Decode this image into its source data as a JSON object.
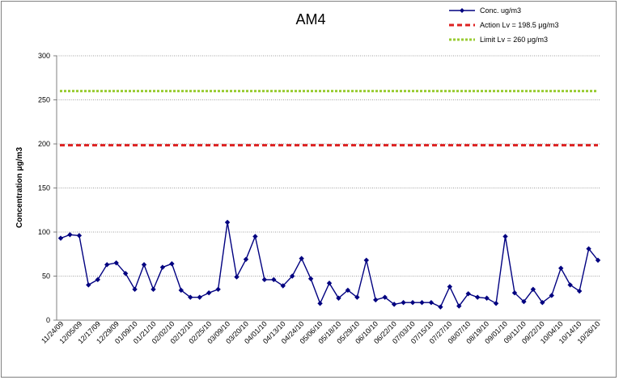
{
  "chart_data": {
    "type": "line",
    "title": "AM4",
    "xlabel": "",
    "ylabel": "Concentration μg/m3",
    "ylim": [
      0,
      300
    ],
    "yticks": [
      0,
      50,
      100,
      150,
      200,
      250,
      300
    ],
    "grid": "horizontal dotted",
    "legend_position": "top-right",
    "xtick_labels": [
      "11/24/09",
      "12/05/09",
      "12/17/09",
      "12/29/09",
      "01/09/10",
      "01/21/10",
      "02/02/10",
      "02/12/10",
      "02/25/10",
      "03/09/10",
      "03/20/10",
      "04/01/10",
      "04/13/10",
      "04/24/10",
      "05/06/10",
      "05/18/10",
      "05/29/10",
      "06/10/10",
      "06/22/10",
      "07/03/10",
      "07/15/10",
      "07/27/10",
      "08/07/10",
      "08/19/10",
      "09/01/10",
      "09/11/10",
      "09/22/10",
      "10/04/10",
      "10/14/10",
      "10/26/10"
    ],
    "series": [
      {
        "name": "Conc. ug/m3",
        "color": "#000080",
        "marker": "diamond",
        "values": [
          93,
          97,
          96,
          40,
          46,
          63,
          65,
          53,
          35,
          63,
          35,
          60,
          64,
          34,
          26,
          26,
          31,
          35,
          111,
          49,
          69,
          95,
          46,
          46,
          39,
          50,
          70,
          47,
          19,
          42,
          25,
          34,
          26,
          68,
          23,
          26,
          18,
          20,
          20,
          20,
          20,
          15,
          38,
          16,
          30,
          26,
          25,
          19,
          95,
          31,
          21,
          35,
          20,
          28,
          59,
          40,
          33,
          81,
          68
        ]
      },
      {
        "name": "Action Lv = 198.5 μg/m3",
        "color": "#dd2222",
        "style": "dashed",
        "value": 198.5
      },
      {
        "name": "Limit Lv = 260 μg/m3",
        "color": "#99cc33",
        "style": "dashed",
        "value": 260
      }
    ]
  }
}
